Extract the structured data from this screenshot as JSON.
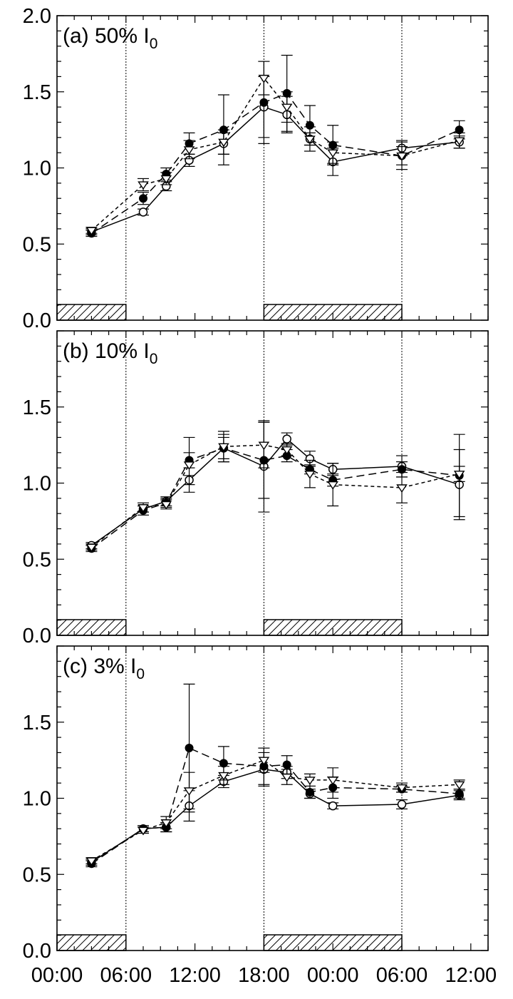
{
  "chart_data": [
    {
      "type": "line",
      "panel_label": "(a) 50% I",
      "panel_subscript": "0",
      "x_tick_labels": [
        "00:00",
        "06:00",
        "12:00",
        "18:00",
        "00:00",
        "06:00",
        "12:00"
      ],
      "x_tick_hours": [
        0,
        6,
        12,
        18,
        24,
        30,
        36
      ],
      "xlim": [
        0,
        37.5
      ],
      "ylim": [
        0,
        2.0
      ],
      "y_tick_labels": [
        "0.0",
        "0.5",
        "1.0",
        "1.5",
        "2.0"
      ],
      "y_tick_values": [
        0,
        0.5,
        1.0,
        1.5,
        2.0
      ],
      "dark_periods": [
        [
          0,
          6
        ],
        [
          18,
          30
        ]
      ],
      "series": [
        {
          "marker": "open-circle",
          "line": "solid",
          "x": [
            3,
            7.5,
            9.5,
            11.5,
            14.5,
            18,
            20,
            22,
            24,
            30,
            35
          ],
          "y": [
            0.58,
            0.71,
            0.88,
            1.05,
            1.16,
            1.4,
            1.35,
            1.19,
            1.04,
            1.13,
            1.17
          ],
          "err": [
            0.02,
            0.02,
            0.03,
            0.04,
            0.07,
            0.2,
            0.12,
            0.04,
            0.09,
            0.05,
            0.04
          ]
        },
        {
          "marker": "filled-circle",
          "line": "long-dash",
          "x": [
            3,
            7.5,
            9.5,
            11.5,
            14.5,
            18,
            20,
            22,
            24,
            30,
            35
          ],
          "y": [
            0.57,
            0.8,
            0.96,
            1.16,
            1.25,
            1.43,
            1.49,
            1.28,
            1.15,
            1.08,
            1.25
          ],
          "err": [
            0.02,
            0.04,
            0.04,
            0.07,
            0.23,
            0.27,
            0.25,
            0.13,
            0.13,
            0.09,
            0.06
          ]
        },
        {
          "marker": "open-triangle-down",
          "line": "short-dash",
          "x": [
            3,
            7.5,
            9.5,
            11.5,
            14.5,
            18,
            20,
            22,
            24,
            30,
            35
          ],
          "y": [
            0.59,
            0.89,
            0.93,
            1.12,
            1.17,
            1.59,
            1.4,
            1.19,
            1.1,
            1.08,
            1.18
          ],
          "err": [
            0.02,
            0.04,
            0.04,
            0.06,
            0.08,
            0.11,
            0.1,
            0.08,
            0.07,
            0.06,
            0.05
          ]
        }
      ]
    },
    {
      "type": "line",
      "panel_label": "(b) 10% I",
      "panel_subscript": "0",
      "x_tick_labels": [
        "00:00",
        "06:00",
        "12:00",
        "18:00",
        "00:00",
        "06:00",
        "12:00"
      ],
      "x_tick_hours": [
        0,
        6,
        12,
        18,
        24,
        30,
        36
      ],
      "xlim": [
        0,
        37.5
      ],
      "ylim": [
        0,
        2.0
      ],
      "y_tick_labels": [
        "0.0",
        "0.5",
        "1.0",
        "1.5"
      ],
      "y_tick_values": [
        0,
        0.5,
        1.0,
        1.5
      ],
      "dark_periods": [
        [
          0,
          6
        ],
        [
          18,
          30
        ]
      ],
      "series": [
        {
          "marker": "open-circle",
          "line": "solid",
          "x": [
            3,
            7.5,
            9.5,
            11.5,
            14.5,
            18,
            20,
            22,
            24,
            30,
            35
          ],
          "y": [
            0.59,
            0.83,
            0.88,
            1.02,
            1.23,
            1.11,
            1.29,
            1.16,
            1.09,
            1.11,
            0.99
          ],
          "err": [
            0.02,
            0.02,
            0.03,
            0.03,
            0.07,
            0.3,
            0.04,
            0.05,
            0.04,
            0.07,
            0.23
          ]
        },
        {
          "marker": "filled-circle",
          "line": "long-dash",
          "x": [
            3,
            7.5,
            9.5,
            11.5,
            14.5,
            18,
            20,
            22,
            24,
            30,
            35
          ],
          "y": [
            0.57,
            0.82,
            0.87,
            1.15,
            1.23,
            1.15,
            1.18,
            1.09,
            1.02,
            1.09,
            1.05
          ],
          "err": [
            0.02,
            0.03,
            0.03,
            0.05,
            0.09,
            0.25,
            0.04,
            0.03,
            0.04,
            0.05,
            0.27
          ]
        },
        {
          "marker": "open-triangle-down",
          "line": "short-dash",
          "x": [
            3,
            7.5,
            9.5,
            11.5,
            14.5,
            18,
            20,
            22,
            24,
            30,
            35
          ],
          "y": [
            0.58,
            0.84,
            0.86,
            1.12,
            1.24,
            1.25,
            1.22,
            1.06,
            0.99,
            0.97,
            1.06
          ],
          "err": [
            0.02,
            0.03,
            0.03,
            0.18,
            0.1,
            0.15,
            0.04,
            0.09,
            0.14,
            0.1,
            0.05
          ]
        }
      ]
    },
    {
      "type": "line",
      "panel_label": "(c) 3% I",
      "panel_subscript": "0",
      "x_tick_labels": [
        "00:00",
        "06:00",
        "12:00",
        "18:00",
        "00:00",
        "06:00",
        "12:00"
      ],
      "x_tick_hours": [
        0,
        6,
        12,
        18,
        24,
        30,
        36
      ],
      "xlim": [
        0,
        37.5
      ],
      "ylim": [
        0,
        2.0
      ],
      "y_tick_labels": [
        "0.0",
        "0.5",
        "1.0",
        "1.5"
      ],
      "y_tick_values": [
        0,
        0.5,
        1.0,
        1.5
      ],
      "dark_periods": [
        [
          0,
          6
        ],
        [
          18,
          30
        ]
      ],
      "series": [
        {
          "marker": "open-circle",
          "line": "solid",
          "x": [
            3,
            7.5,
            9.5,
            11.5,
            14.5,
            18,
            20,
            22,
            24,
            30,
            35
          ],
          "y": [
            0.58,
            0.8,
            0.81,
            0.95,
            1.11,
            1.19,
            1.17,
            1.03,
            0.95,
            0.96,
            1.02
          ],
          "err": [
            0.02,
            0.02,
            0.03,
            0.1,
            0.04,
            0.11,
            0.04,
            0.03,
            0.02,
            0.03,
            0.03
          ]
        },
        {
          "marker": "filled-circle",
          "line": "long-dash",
          "x": [
            3,
            7.5,
            9.5,
            11.5,
            14.5,
            18,
            20,
            22,
            24,
            30,
            35
          ],
          "y": [
            0.57,
            0.8,
            0.81,
            1.33,
            1.23,
            1.21,
            1.22,
            1.04,
            1.07,
            1.06,
            1.03
          ],
          "err": [
            0.02,
            0.02,
            0.03,
            0.42,
            0.11,
            0.12,
            0.06,
            0.04,
            0.07,
            0.02,
            0.03
          ]
        },
        {
          "marker": "open-triangle-down",
          "line": "short-dash",
          "x": [
            3,
            7.5,
            9.5,
            11.5,
            14.5,
            18,
            20,
            22,
            24,
            30,
            35
          ],
          "y": [
            0.59,
            0.79,
            0.84,
            1.05,
            1.15,
            1.25,
            1.14,
            1.12,
            1.12,
            1.07,
            1.09
          ],
          "err": [
            0.02,
            0.02,
            0.04,
            0.12,
            0.06,
            0.08,
            0.05,
            0.04,
            0.08,
            0.03,
            0.03
          ]
        }
      ]
    }
  ]
}
